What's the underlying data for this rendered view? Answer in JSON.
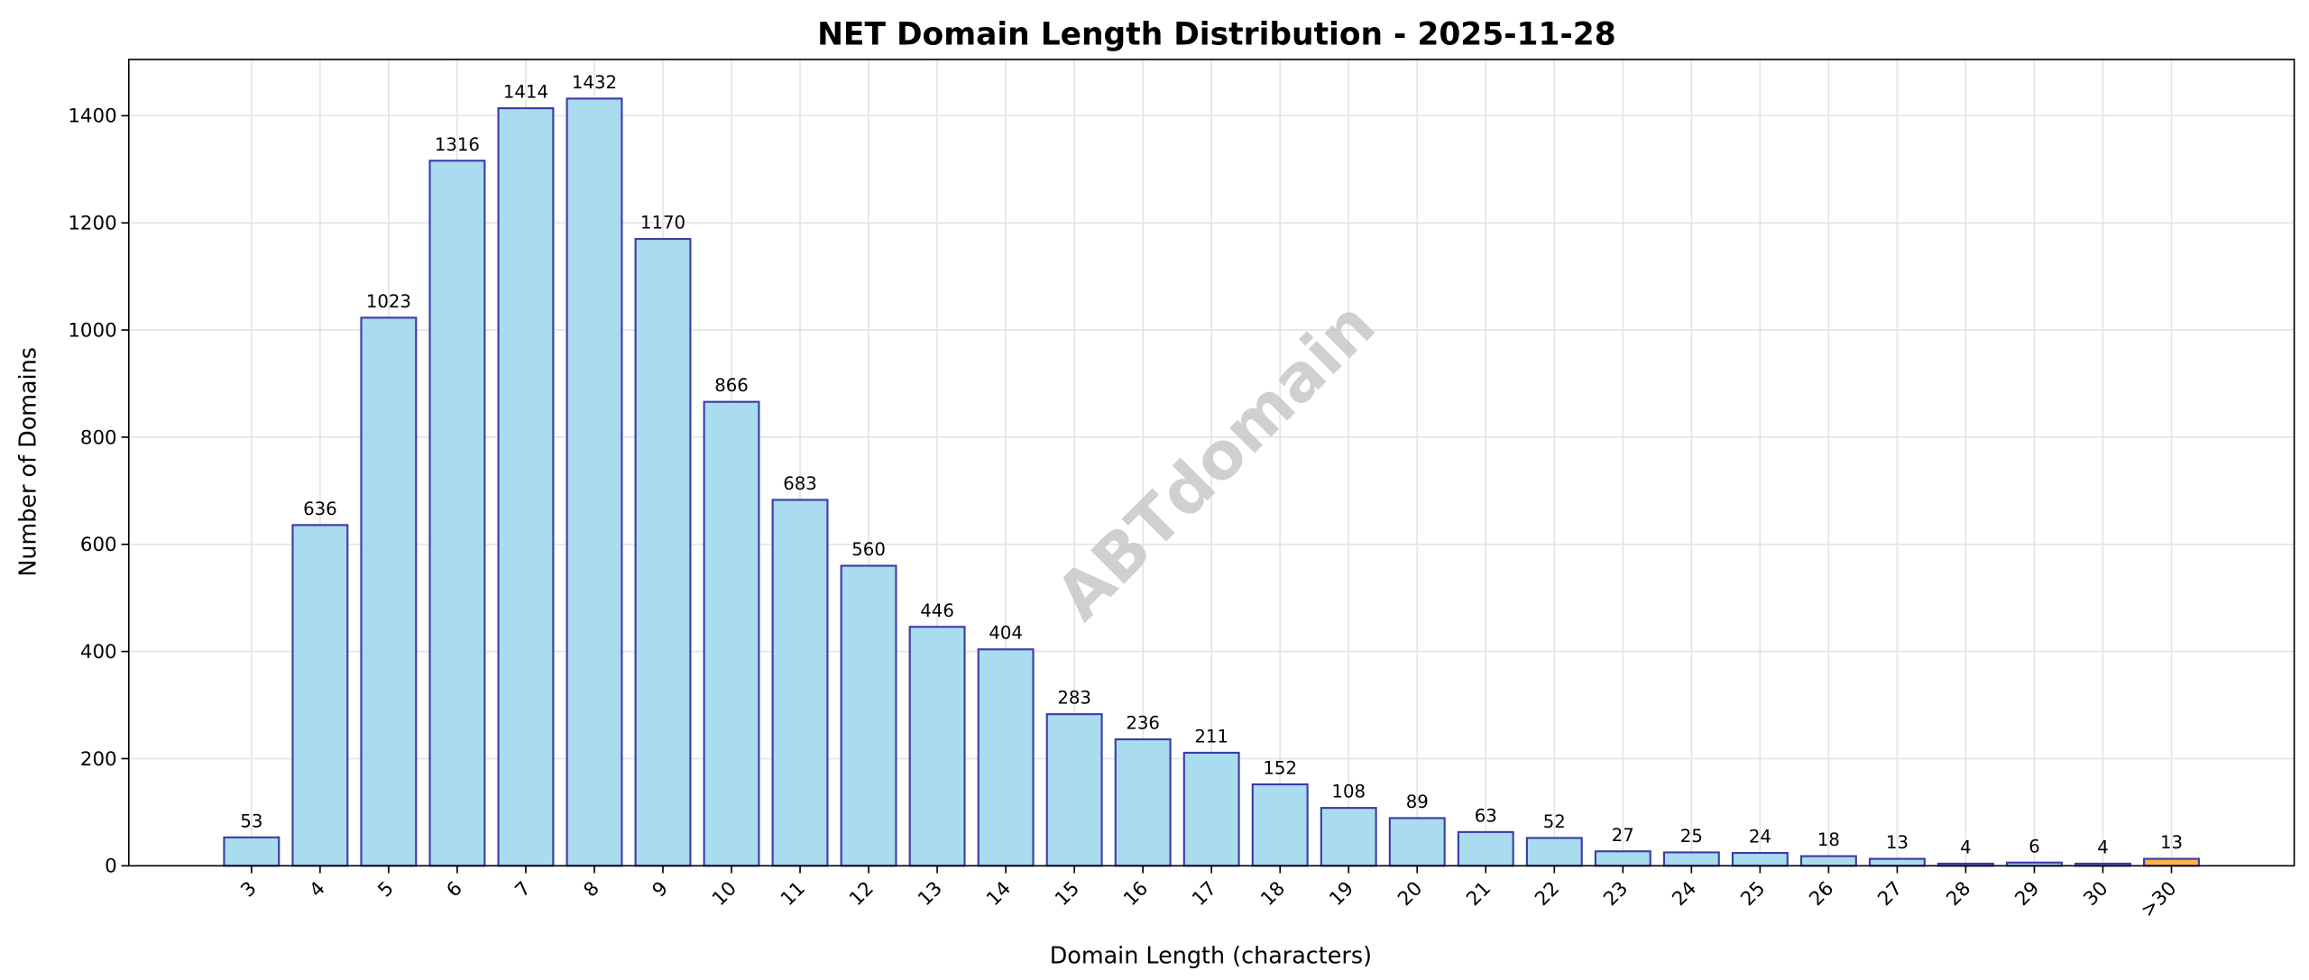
{
  "chart_data": {
    "type": "bar",
    "title": "NET Domain Length Distribution - 2025-11-28",
    "xlabel": "Domain Length (characters)",
    "ylabel": "Number of Domains",
    "categories": [
      "3",
      "4",
      "5",
      "6",
      "7",
      "8",
      "9",
      "10",
      "11",
      "12",
      "13",
      "14",
      "15",
      "16",
      "17",
      "18",
      "19",
      "20",
      "21",
      "22",
      "23",
      "24",
      "25",
      "26",
      "27",
      "28",
      "29",
      "30",
      ">30"
    ],
    "values": [
      53,
      636,
      1023,
      1316,
      1414,
      1432,
      1170,
      866,
      683,
      560,
      446,
      404,
      283,
      236,
      211,
      152,
      108,
      89,
      63,
      52,
      27,
      25,
      24,
      18,
      13,
      4,
      6,
      4,
      13
    ],
    "ylim": [
      0,
      1505
    ],
    "yticks": [
      0,
      200,
      400,
      600,
      800,
      1000,
      1200,
      1400
    ],
    "grid": true,
    "watermark": "ABTdomain",
    "colors": {
      "bar": "#a8dcee",
      "bar_edge": "#3c3ca8",
      "highlight_bar": "#ffb347",
      "grid": "#e4e4e4",
      "watermark": "#c8c8c8"
    }
  }
}
